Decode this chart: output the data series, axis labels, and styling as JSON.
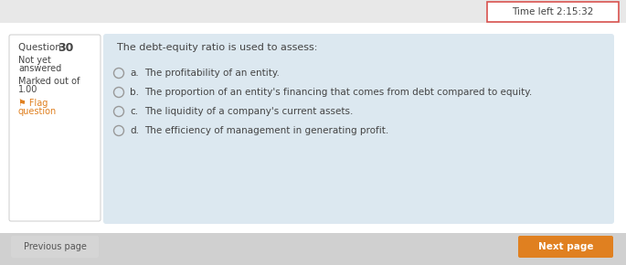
{
  "bg_color": "#e8e8e8",
  "main_bg": "#ffffff",
  "timer_text": "Time left 2:15:32",
  "timer_border": "#d9534f",
  "timer_bg": "#ffffff",
  "left_panel_bg": "#ffffff",
  "left_panel_border": "#cccccc",
  "question_label": "Question ",
  "question_number": "30",
  "not_yet_answered_line1": "Not yet",
  "not_yet_answered_line2": "answered",
  "marked_out_line1": "Marked out of",
  "marked_out_line2": "1.00",
  "flag_symbol": "⚑",
  "flag_word1": " Flag",
  "flag_word2": "question",
  "flag_color": "#e08020",
  "question_area_bg": "#dce8f0",
  "question_text": "The debt-equity ratio is used to assess:",
  "options": [
    {
      "label": "a.",
      "text": "The profitability of an entity."
    },
    {
      "label": "b.",
      "text": "The proportion of an entity's financing that comes from debt compared to equity."
    },
    {
      "label": "c.",
      "text": "The liquidity of a company's current assets."
    },
    {
      "label": "d.",
      "text": "The efficiency of management in generating profit."
    }
  ],
  "prev_btn_text": "Previous page",
  "prev_btn_bg": "#d5d5d5",
  "prev_btn_fg": "#555555",
  "next_btn_text": "Next page",
  "next_btn_bg": "#e08020",
  "next_btn_fg": "#ffffff",
  "radio_edge_color": "#999999",
  "text_color": "#444444",
  "bottom_strip_color": "#d0d0d0"
}
